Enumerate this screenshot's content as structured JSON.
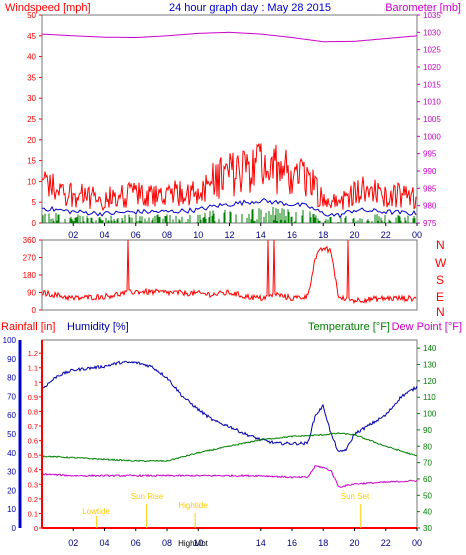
{
  "header": {
    "title": "24 hour graph day : May 28 2015",
    "left_label": "Windspeed [mph]",
    "right_label": "Barometer [mb]"
  },
  "x_axis": {
    "ticks": [
      "02",
      "04",
      "06",
      "08",
      "10",
      "12",
      "14",
      "16",
      "18",
      "20",
      "22",
      "00"
    ],
    "bottom_ticks": [
      "02",
      "04",
      "06",
      "08",
      "10",
      "14",
      "16",
      "18",
      "20",
      "22",
      "00"
    ],
    "bottom_overlay": "HighMbt"
  },
  "wind_panel": {
    "left_ticks": [
      0,
      5,
      10,
      15,
      20,
      25,
      30,
      35,
      40,
      45,
      50
    ],
    "right_ticks": [
      975,
      980,
      985,
      990,
      995,
      1000,
      1005,
      1010,
      1015,
      1020,
      1025,
      1030,
      1035
    ],
    "colors": {
      "gust": "#ff0000",
      "average": "#0000cc",
      "calm": "#008000",
      "barometer": "#cc00cc"
    }
  },
  "direction_panel": {
    "left_ticks": [
      0,
      90,
      180,
      270,
      360
    ],
    "compass": [
      "N",
      "W",
      "S",
      "E",
      "N"
    ],
    "color": "#ff0000"
  },
  "lower_panel": {
    "rainfall_label": "Rainfall [in]",
    "humidity_label": "Humidity [%]",
    "temperature_label": "Temperature [°F]",
    "dewpoint_label": "Dew Point [°F]",
    "rain_ticks": [
      "0",
      "0.1",
      "0.2",
      "0.3",
      "0.4",
      "0.5",
      "0.6",
      "0.7",
      "0.8",
      "0.9",
      "1",
      "1.1",
      "1.2"
    ],
    "humidity_ticks": [
      0,
      10,
      20,
      30,
      40,
      50,
      60,
      70,
      80,
      90,
      100
    ],
    "temp_ticks": [
      30,
      40,
      50,
      60,
      70,
      80,
      90,
      100,
      110,
      120,
      130,
      140
    ],
    "annotations": [
      "Lowtide",
      "Sun Rise",
      "Hightide",
      "Sun Set"
    ],
    "colors": {
      "humidity": "#0000aa",
      "temperature": "#008000",
      "dewpoint": "#cc00cc",
      "rain": "#ff0000",
      "annotation": "#ffcc00"
    }
  },
  "chart_data": [
    {
      "type": "line",
      "title": "24 hour graph day : May 28 2015",
      "xlabel": "",
      "ylabel": "Windspeed [mph]",
      "y2label": "Barometer [mb]",
      "x_range_hours": [
        0,
        24
      ],
      "ylim": [
        0,
        50
      ],
      "y2lim": [
        975,
        1035
      ],
      "series": [
        {
          "name": "Windspeed [mph]",
          "x": [
            0,
            2,
            4,
            6,
            8,
            10,
            11,
            12,
            13,
            14,
            15,
            16,
            17,
            18,
            19,
            20,
            22,
            24
          ],
          "values": [
            8,
            6,
            5,
            6,
            6,
            7,
            9,
            10,
            11,
            12,
            11,
            10,
            9,
            5,
            4,
            7,
            6,
            5
          ]
        },
        {
          "name": "Barometer [mb]",
          "x": [
            0,
            2,
            4,
            6,
            8,
            10,
            12,
            14,
            16,
            18,
            20,
            22,
            24
          ],
          "values": [
            1029.5,
            1029,
            1028.6,
            1028.5,
            1029,
            1029.7,
            1030,
            1029.5,
            1028.5,
            1027.3,
            1027.4,
            1028.2,
            1029
          ]
        }
      ]
    },
    {
      "type": "scatter",
      "title": "",
      "ylabel": "",
      "ylim": [
        0,
        360
      ],
      "series": [
        {
          "name": "",
          "x": [
            0,
            2,
            4,
            6,
            8,
            10,
            11,
            12,
            13,
            14,
            15,
            16,
            17,
            17.5,
            18,
            18.5,
            19,
            20,
            22,
            24
          ],
          "values": [
            90,
            60,
            70,
            95,
            90,
            85,
            80,
            90,
            70,
            60,
            80,
            60,
            70,
            270,
            320,
            300,
            60,
            50,
            60,
            60
          ]
        }
      ]
    },
    {
      "type": "line",
      "title": "",
      "ylabel": "Humidity [%]",
      "y2label": "Temperature [°F]",
      "ylim": [
        0,
        100
      ],
      "series": [
        {
          "name": "Humidity [%]",
          "x": [
            0,
            1,
            2,
            3,
            4,
            5,
            6,
            7,
            8,
            9,
            10,
            11,
            12,
            13,
            14,
            15,
            16,
            17,
            17.5,
            18,
            18.5,
            19,
            19.5,
            20,
            21,
            22,
            23,
            24
          ],
          "values": [
            74,
            81,
            84,
            85,
            86,
            88,
            88,
            86,
            80,
            70,
            63,
            57,
            54,
            50,
            47,
            45,
            45,
            45,
            60,
            65,
            50,
            40,
            42,
            50,
            55,
            60,
            70,
            75
          ]
        },
        {
          "name": "Temperature [°F]",
          "x": [
            0,
            2,
            4,
            6,
            8,
            10,
            12,
            14,
            16,
            18,
            19,
            20,
            22,
            24
          ],
          "values": [
            74,
            73,
            72,
            71,
            71,
            76,
            80,
            84,
            86,
            87,
            88,
            87,
            80,
            74
          ]
        },
        {
          "name": "Dew Point [°F]",
          "x": [
            0,
            2,
            4,
            6,
            8,
            10,
            12,
            14,
            16,
            17,
            17.5,
            18,
            18.5,
            19,
            20,
            22,
            24
          ],
          "values": [
            63,
            62,
            62,
            62,
            62,
            62,
            62,
            62,
            61,
            61,
            68,
            67,
            65,
            55,
            57,
            58,
            59
          ]
        },
        {
          "name": "Rainfall [in]",
          "x": [
            0,
            24
          ],
          "values": [
            0,
            0
          ]
        }
      ]
    }
  ]
}
